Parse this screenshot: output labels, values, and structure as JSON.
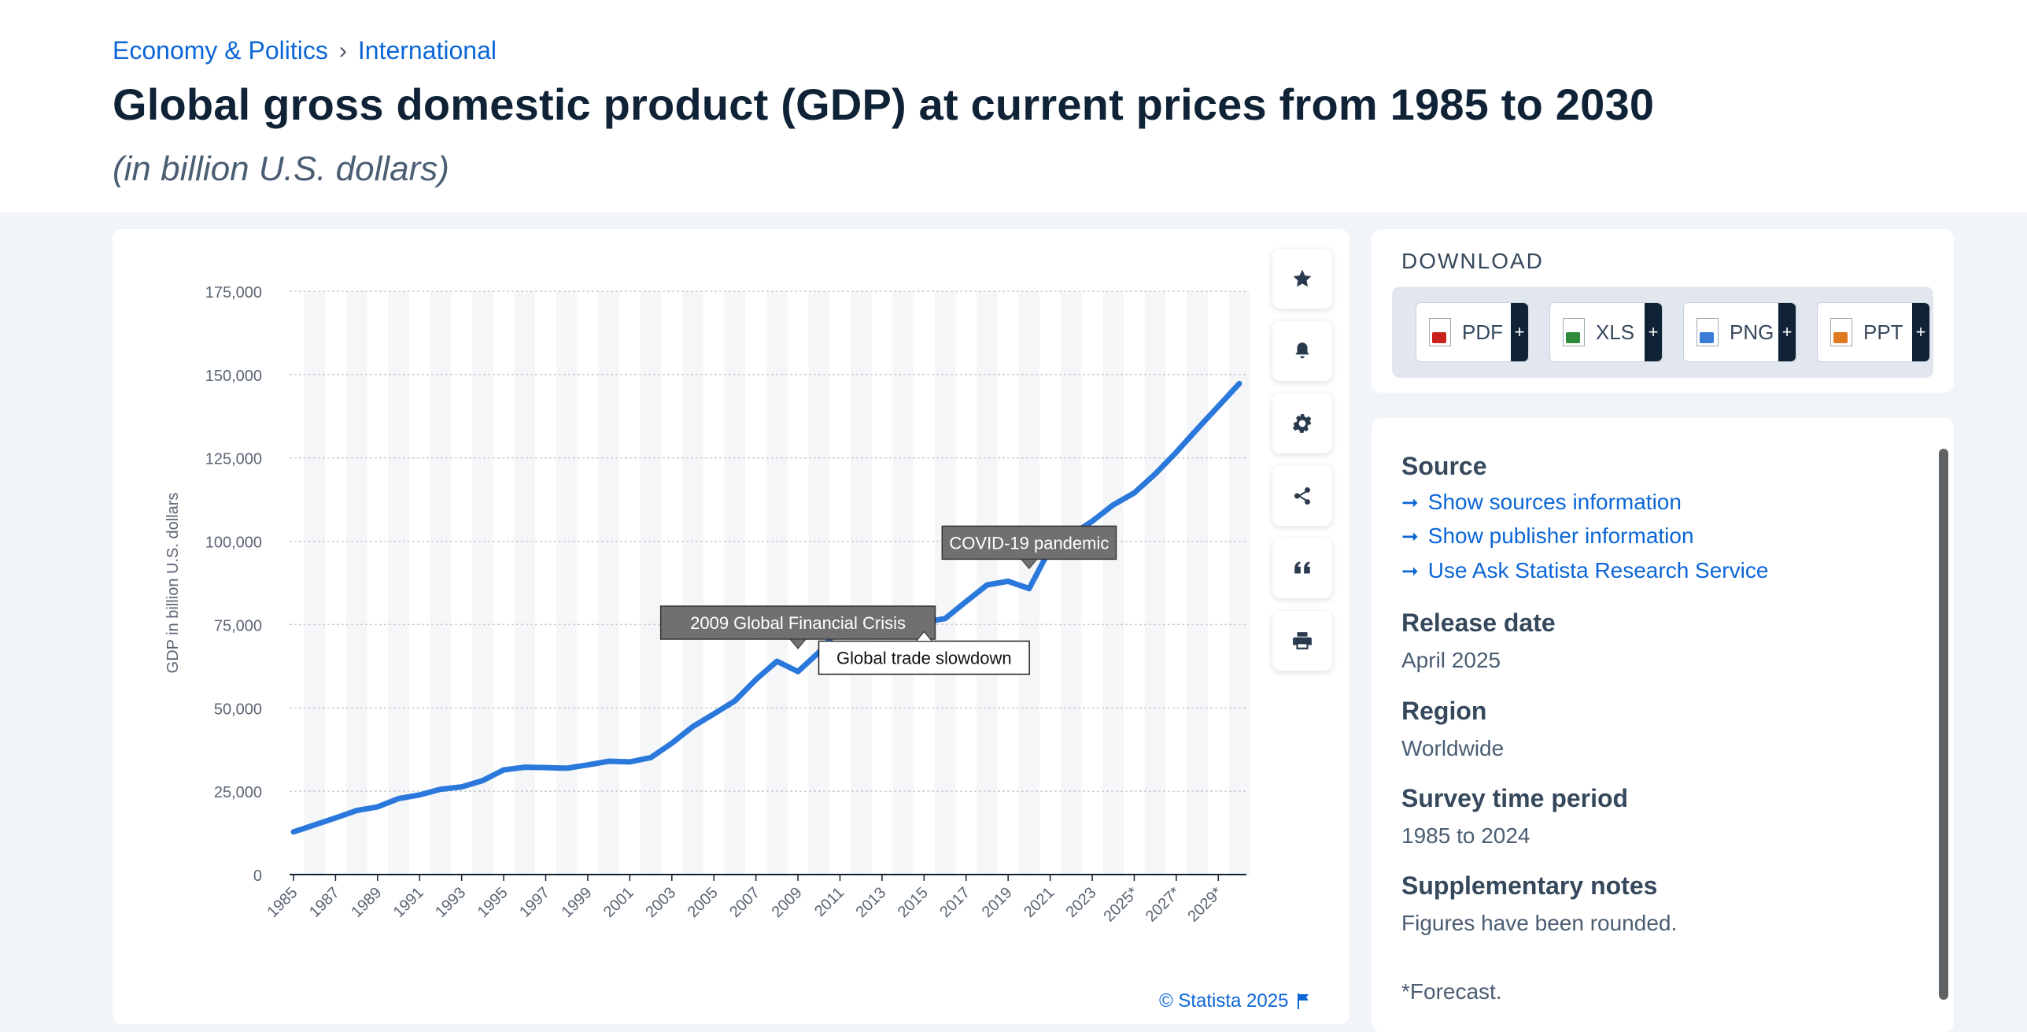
{
  "breadcrumb": {
    "level1": "Economy & Politics",
    "separator": "›",
    "level2": "International"
  },
  "title": "Global gross domestic product (GDP) at current prices from 1985 to 2030",
  "subtitle": "(in billion U.S. dollars)",
  "side_buttons": [
    {
      "name": "favorite",
      "icon": "star-icon"
    },
    {
      "name": "notification",
      "icon": "bell-icon"
    },
    {
      "name": "settings",
      "icon": "gear-icon"
    },
    {
      "name": "share",
      "icon": "share-icon"
    },
    {
      "name": "cite",
      "icon": "quote-icon"
    },
    {
      "name": "print",
      "icon": "printer-icon"
    }
  ],
  "download": {
    "title": "DOWNLOAD",
    "buttons": [
      {
        "label": "PDF",
        "plus": "+",
        "color": "#c9221a"
      },
      {
        "label": "XLS",
        "plus": "+",
        "color": "#2e8b3a"
      },
      {
        "label": "PNG",
        "plus": "+",
        "color": "#3a7bd5"
      },
      {
        "label": "PPT",
        "plus": "+",
        "color": "#e07a1f"
      }
    ]
  },
  "info": {
    "source_heading": "Source",
    "links": [
      "Show sources information",
      "Show publisher information",
      "Use Ask Statista Research Service"
    ],
    "release_heading": "Release date",
    "release_value": "April 2025",
    "region_heading": "Region",
    "region_value": "Worldwide",
    "survey_heading": "Survey time period",
    "survey_value": "1985 to 2024",
    "notes_heading": "Supplementary notes",
    "notes_value": "Figures have been rounded.",
    "forecast_note": "*Forecast."
  },
  "copyright": "© Statista 2025",
  "colors": {
    "line": "#2a78db",
    "link": "#0b66d6",
    "annotation_bg": "#707070"
  },
  "chart_data": {
    "type": "line",
    "ylabel": "GDP in billion U.S. dollars",
    "ylim": [
      0,
      175000
    ],
    "yticks": [
      0,
      25000,
      50000,
      75000,
      100000,
      125000,
      150000,
      175000
    ],
    "ytick_labels": [
      "0",
      "25,000",
      "50,000",
      "75,000",
      "100,000",
      "125,000",
      "150,000",
      "175,000"
    ],
    "x": [
      1985,
      1986,
      1987,
      1988,
      1989,
      1990,
      1991,
      1992,
      1993,
      1994,
      1995,
      1996,
      1997,
      1998,
      1999,
      2000,
      2001,
      2002,
      2003,
      2004,
      2005,
      2006,
      2007,
      2008,
      2009,
      2010,
      2011,
      2012,
      2013,
      2014,
      2015,
      2016,
      2017,
      2018,
      2019,
      2020,
      2021,
      2022,
      2023,
      2024,
      2025,
      2026,
      2027,
      2028,
      2029,
      2030
    ],
    "xtick_labels": [
      "1985",
      "1987",
      "1989",
      "1991",
      "1993",
      "1995",
      "1997",
      "1999",
      "2001",
      "2003",
      "2005",
      "2007",
      "2009",
      "2011",
      "2013",
      "2015",
      "2017",
      "2019",
      "2021",
      "2023",
      "2025*",
      "2027*",
      "2029*"
    ],
    "series": [
      {
        "values": [
          12800,
          14900,
          17000,
          19200,
          20300,
          22800,
          23900,
          25600,
          26300,
          28200,
          31400,
          32200,
          32100,
          31900,
          32900,
          34000,
          33800,
          35100,
          39400,
          44400,
          48200,
          52100,
          58500,
          64000,
          60900,
          66700,
          74100,
          75900,
          77800,
          79900,
          75700,
          76800,
          81900,
          86900,
          88000,
          85800,
          97800,
          101900,
          106000,
          110900,
          114500,
          120200,
          126700,
          133700,
          140500,
          147300
        ]
      }
    ],
    "annotations": [
      {
        "label": "2009 Global Financial Crisis",
        "x": 2009,
        "y": 64000,
        "style": "dark-above"
      },
      {
        "label": "Global trade slowdown",
        "x": 2015,
        "y": 75700,
        "style": "light-below"
      },
      {
        "label": "COVID-19 pandemic",
        "x": 2020,
        "y": 88000,
        "style": "dark-above"
      }
    ]
  }
}
